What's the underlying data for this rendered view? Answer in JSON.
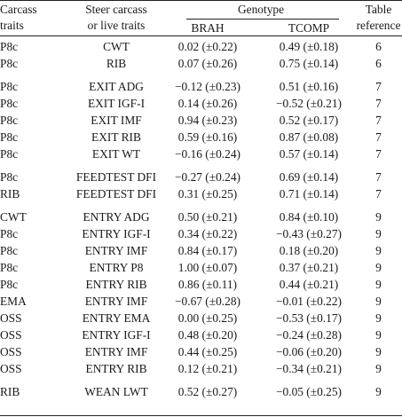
{
  "header": {
    "col0_line1": "Carcass",
    "col0_line2": "traits",
    "col1_line1": "Steer carcass",
    "col1_line2": "or live traits",
    "genotype": "Genotype",
    "brah": "BRAH",
    "tcomp": "TCOMP",
    "col4_line1": "Table",
    "col4_line2": "reference"
  },
  "rows": [
    {
      "carcass": "P8c",
      "steer": "CWT",
      "brah": "0.02 (±0.22)",
      "tcomp": "0.49 (±0.18)",
      "ref": "6"
    },
    {
      "carcass": "P8c",
      "steer": "RIB",
      "brah": "0.07 (±0.26)",
      "tcomp": "0.75 (±0.14)",
      "ref": "6"
    },
    {
      "carcass": "P8c",
      "steer": "EXIT ADG",
      "brah": "−0.12 (±0.23)",
      "tcomp": "0.51 (±0.16)",
      "ref": "7"
    },
    {
      "carcass": "P8c",
      "steer": "EXIT IGF-I",
      "brah": "0.14 (±0.26)",
      "tcomp": "−0.52 (±0.21)",
      "ref": "7"
    },
    {
      "carcass": "P8c",
      "steer": "EXIT IMF",
      "brah": "0.94 (±0.23)",
      "tcomp": "0.52 (±0.17)",
      "ref": "7"
    },
    {
      "carcass": "P8c",
      "steer": "EXIT RIB",
      "brah": "0.59 (±0.16)",
      "tcomp": "0.87 (±0.08)",
      "ref": "7"
    },
    {
      "carcass": "P8c",
      "steer": "EXIT WT",
      "brah": "−0.16 (±0.24)",
      "tcomp": "0.57 (±0.14)",
      "ref": "7"
    },
    {
      "carcass": "P8c",
      "steer": "FEEDTEST DFI",
      "brah": "−0.27 (±0.24)",
      "tcomp": "0.69 (±0.14)",
      "ref": "7"
    },
    {
      "carcass": "RIB",
      "steer": "FEEDTEST DFI",
      "brah": "0.31 (±0.25)",
      "tcomp": "0.71 (±0.14)",
      "ref": "7"
    },
    {
      "carcass": "CWT",
      "steer": "ENTRY ADG",
      "brah": "0.50 (±0.21)",
      "tcomp": "0.84 (±0.10)",
      "ref": "9"
    },
    {
      "carcass": "P8c",
      "steer": "ENTRY IGF-I",
      "brah": "0.34 (±0.22)",
      "tcomp": "−0.43 (±0.27)",
      "ref": "9"
    },
    {
      "carcass": "P8c",
      "steer": "ENTRY IMF",
      "brah": "0.84 (±0.17)",
      "tcomp": "0.18 (±0.20)",
      "ref": "9"
    },
    {
      "carcass": "P8c",
      "steer": "ENTRY P8",
      "brah": "1.00 (±0.07)",
      "tcomp": "0.37 (±0.21)",
      "ref": "9"
    },
    {
      "carcass": "P8c",
      "steer": "ENTRY RIB",
      "brah": "0.86 (±0.11)",
      "tcomp": "0.44 (±0.21)",
      "ref": "9"
    },
    {
      "carcass": "EMA",
      "steer": "ENTRY IMF",
      "brah": "−0.67 (±0.28)",
      "tcomp": "−0.01 (±0.22)",
      "ref": "9"
    },
    {
      "carcass": "OSS",
      "steer": "ENTRY EMA",
      "brah": "0.00 (±0.25)",
      "tcomp": "−0.53 (±0.17)",
      "ref": "9"
    },
    {
      "carcass": "OSS",
      "steer": "ENTRY IGF-I",
      "brah": "0.48 (±0.20)",
      "tcomp": "−0.24 (±0.28)",
      "ref": "9"
    },
    {
      "carcass": "OSS",
      "steer": "ENTRY IMF",
      "brah": "0.44 (±0.25)",
      "tcomp": "−0.06 (±0.20)",
      "ref": "9"
    },
    {
      "carcass": "OSS",
      "steer": "ENTRY RIB",
      "brah": "0.12 (±0.21)",
      "tcomp": "−0.34 (±0.21)",
      "ref": "9"
    },
    {
      "carcass": "RIB",
      "steer": "WEAN LWT",
      "brah": "0.52 (±0.27)",
      "tcomp": "−0.05 (±0.25)",
      "ref": "9"
    }
  ]
}
